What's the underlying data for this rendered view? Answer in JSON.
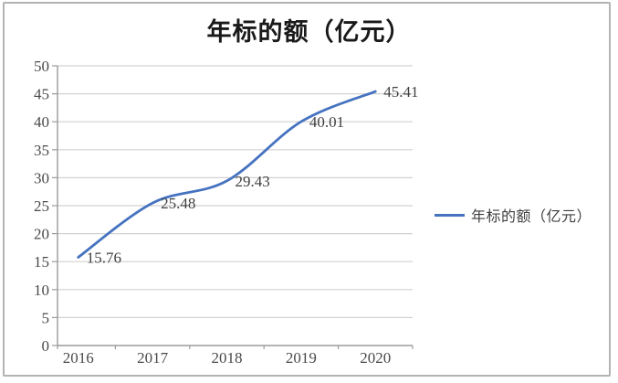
{
  "chart_data": {
    "type": "line",
    "title": "年标的额（亿元）",
    "categories": [
      "2016",
      "2017",
      "2018",
      "2019",
      "2020"
    ],
    "series": [
      {
        "name": "年标的额（亿元）",
        "values": [
          15.76,
          25.48,
          29.43,
          40.01,
          45.41
        ],
        "color": "#4673c0"
      }
    ],
    "data_labels": [
      "15.76",
      "25.48",
      "29.43",
      "40.01",
      "45.41"
    ],
    "xlabel": "",
    "ylabel": "",
    "ylim": [
      0,
      50
    ],
    "ytick_step": 5,
    "grid": true,
    "legend": {
      "position": "right",
      "entries": [
        {
          "label": "年标的额（亿元）",
          "color": "#4673c0"
        }
      ]
    },
    "colors": {
      "line": "#4673c0",
      "gridline": "#d2d2d2",
      "axis": "#9b9b9b",
      "tick_text": "#4a4a4a",
      "label_text": "#3f3f3f",
      "title_text": "#1a1a1a",
      "frame_border": "#b3b3b3",
      "background": "#ffffff"
    }
  }
}
